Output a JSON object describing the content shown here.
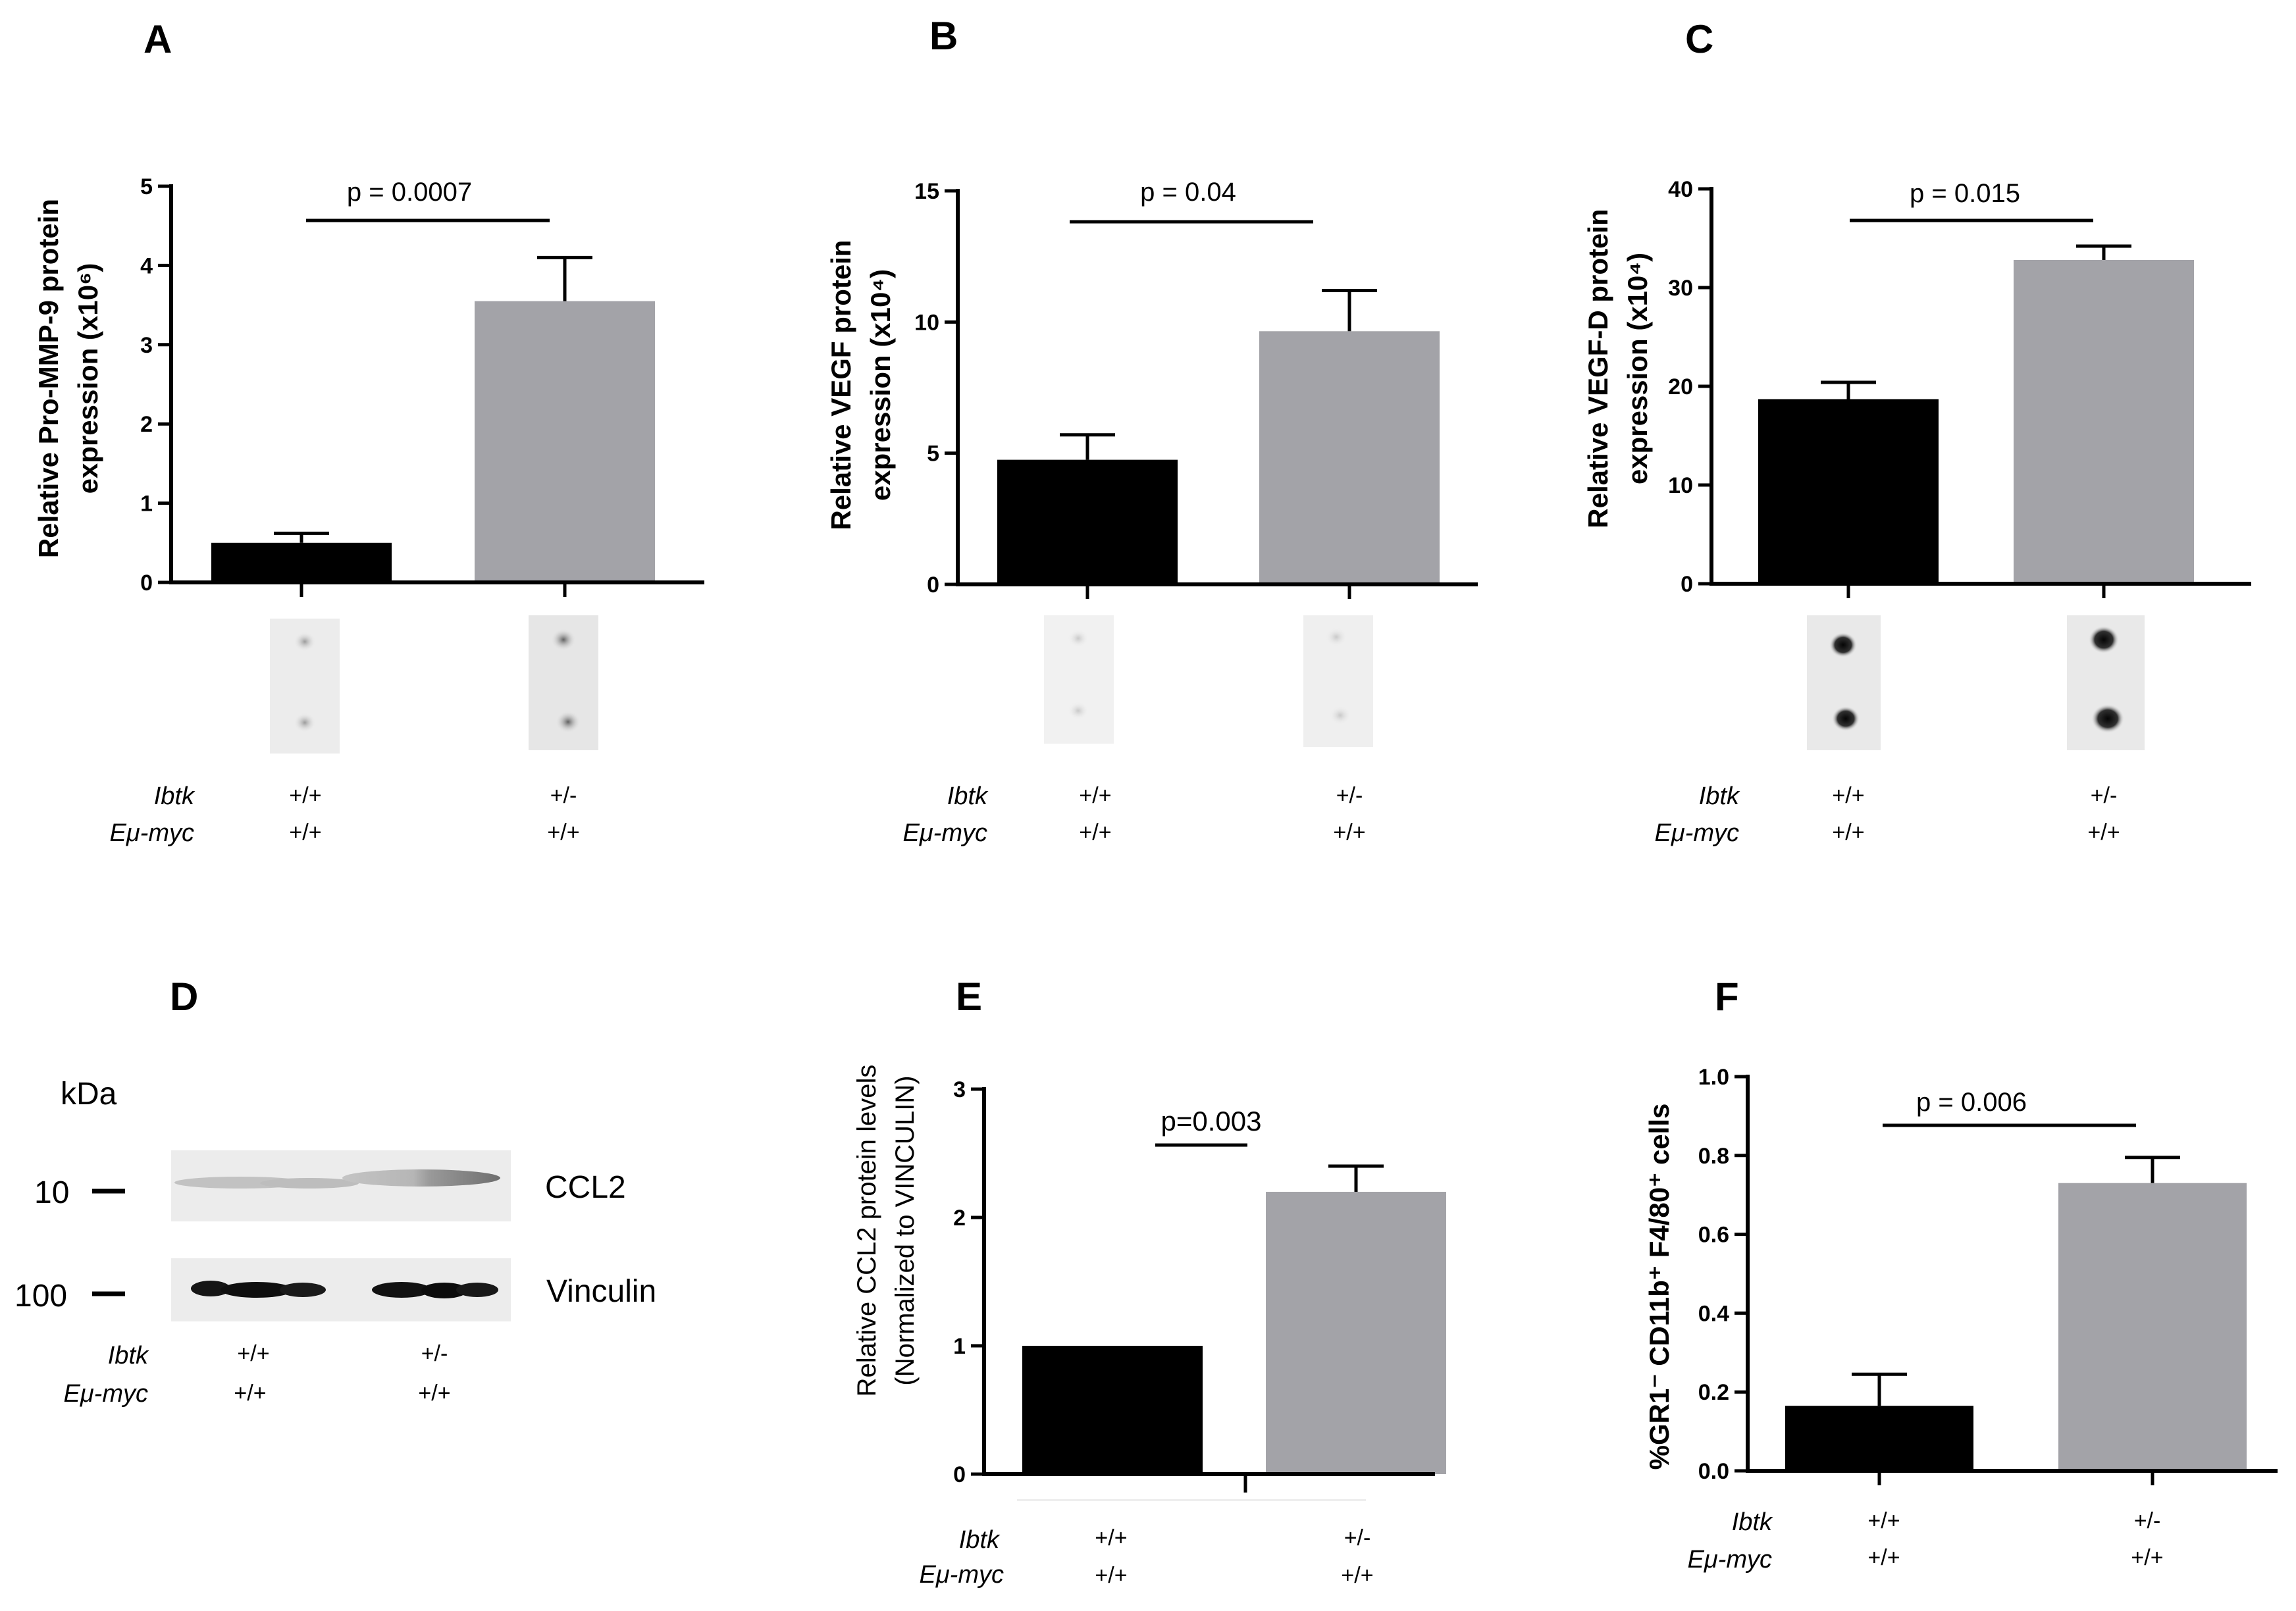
{
  "panels": {
    "A": {
      "letter": "A",
      "ylabel_line1": "Relative Pro-MMP-9 protein",
      "ylabel_line2": "expression (x10⁶)",
      "pvalue": "p = 0.0007",
      "genotype": {
        "row1_label": "Ibtk",
        "row2_label": "Eμ-myc",
        "g1_row1": "+/+",
        "g1_row2": "+/+",
        "g2_row1": "+/-",
        "g2_row2": "+/+"
      }
    },
    "B": {
      "letter": "B",
      "ylabel_line1": "Relative VEGF protein",
      "ylabel_line2": "expression (x10⁴)",
      "pvalue": "p = 0.04",
      "genotype": {
        "row1_label": "Ibtk",
        "row2_label": "Eμ-myc",
        "g1_row1": "+/+",
        "g1_row2": "+/+",
        "g2_row1": "+/-",
        "g2_row2": "+/+"
      }
    },
    "C": {
      "letter": "C",
      "ylabel_line1": "Relative VEGF-D protein",
      "ylabel_line2": "expression (x10⁴)",
      "pvalue": "p = 0.015",
      "genotype": {
        "row1_label": "Ibtk",
        "row2_label": "Eμ-myc",
        "g1_row1": "+/+",
        "g1_row2": "+/+",
        "g2_row1": "+/-",
        "g2_row2": "+/+"
      }
    },
    "D": {
      "letter": "D",
      "kda_label": "kDa",
      "marker_10": "10",
      "marker_100": "100",
      "band1_label": "CCL2",
      "band2_label": "Vinculin",
      "genotype": {
        "row1_label": "Ibtk",
        "row2_label": "Eμ-myc",
        "g1_row1": "+/+",
        "g1_row2": "+/+",
        "g2_row1": "+/-",
        "g2_row2": "+/+"
      }
    },
    "E": {
      "letter": "E",
      "ylabel_line1": "Relative CCL2 protein levels",
      "ylabel_line2": "(Normalized to VINCULIN)",
      "pvalue": "p=0.003",
      "genotype": {
        "row1_label": "Ibtk",
        "row2_label": "Eμ-myc",
        "g1_row1": "+/+",
        "g1_row2": "+/+",
        "g2_row1": "+/-",
        "g2_row2": "+/+"
      }
    },
    "F": {
      "letter": "F",
      "ylabel_line1": "%GR1⁻ CD11b⁺ F4/80⁺ cells",
      "pvalue": "p = 0.006",
      "genotype": {
        "row1_label": "Ibtk",
        "row2_label": "Eμ-myc",
        "g1_row1": "+/+",
        "g1_row2": "+/+",
        "g2_row1": "+/-",
        "g2_row2": "+/+"
      }
    }
  },
  "colors": {
    "bar1": "#000000",
    "bar2": "#a3a3a8",
    "axis": "#000000"
  },
  "chart_data": [
    {
      "id": "A",
      "type": "bar",
      "categories": [
        "Ibtk +/+ Eμ-myc +/+",
        "Ibtk +/- Eμ-myc +/+"
      ],
      "values": [
        0.5,
        3.55
      ],
      "errors": [
        0.12,
        0.55
      ],
      "ylim": [
        0,
        5
      ],
      "yticks": [
        0,
        1,
        2,
        3,
        4,
        5
      ],
      "ytick_labels": [
        "0",
        "1",
        "2",
        "3",
        "4",
        "5"
      ],
      "title": "",
      "ylabel": "Relative Pro-MMP-9 protein expression (x10⁶)",
      "significance": "p = 0.0007"
    },
    {
      "id": "B",
      "type": "bar",
      "categories": [
        "Ibtk +/+ Eμ-myc +/+",
        "Ibtk +/- Eμ-myc +/+"
      ],
      "values": [
        4.75,
        9.65
      ],
      "errors": [
        0.95,
        1.55
      ],
      "ylim": [
        0,
        15
      ],
      "yticks": [
        0,
        5,
        10,
        15
      ],
      "ytick_labels": [
        "0",
        "5",
        "10",
        "15"
      ],
      "title": "",
      "ylabel": "Relative VEGF protein expression (x10⁴)",
      "significance": "p = 0.04"
    },
    {
      "id": "C",
      "type": "bar",
      "categories": [
        "Ibtk +/+ Eμ-myc +/+",
        "Ibtk +/- Eμ-myc +/+"
      ],
      "values": [
        18.7,
        32.8
      ],
      "errors": [
        1.7,
        1.4
      ],
      "ylim": [
        0,
        40
      ],
      "yticks": [
        0,
        10,
        20,
        30,
        40
      ],
      "ytick_labels": [
        "0",
        "10",
        "20",
        "30",
        "40"
      ],
      "title": "",
      "ylabel": "Relative VEGF-D protein expression (x10⁴)",
      "significance": "p = 0.015"
    },
    {
      "id": "E",
      "type": "bar",
      "categories": [
        "Ibtk +/+ Eμ-myc +/+",
        "Ibtk +/- Eμ-myc +/+"
      ],
      "values": [
        1.0,
        2.2
      ],
      "errors": [
        0.0,
        0.2
      ],
      "ylim": [
        0,
        3
      ],
      "yticks": [
        0,
        1,
        2,
        3
      ],
      "ytick_labels": [
        "0",
        "1",
        "2",
        "3"
      ],
      "title": "",
      "ylabel": "Relative CCL2 protein levels (Normalized to VINCULIN)",
      "significance": "p=0.003"
    },
    {
      "id": "F",
      "type": "bar",
      "categories": [
        "Ibtk +/+ Eμ-myc +/+",
        "Ibtk +/- Eμ-myc +/+"
      ],
      "values": [
        0.165,
        0.73
      ],
      "errors": [
        0.08,
        0.065
      ],
      "ylim": [
        0,
        1.0
      ],
      "yticks": [
        0,
        0.2,
        0.4,
        0.6,
        0.8,
        1.0
      ],
      "ytick_labels": [
        "0.0",
        "0.2",
        "0.4",
        "0.6",
        "0.8",
        "1.0"
      ],
      "title": "",
      "ylabel": "%GR1⁻ CD11b⁺ F4/80⁺ cells",
      "significance": "p = 0.006"
    }
  ]
}
